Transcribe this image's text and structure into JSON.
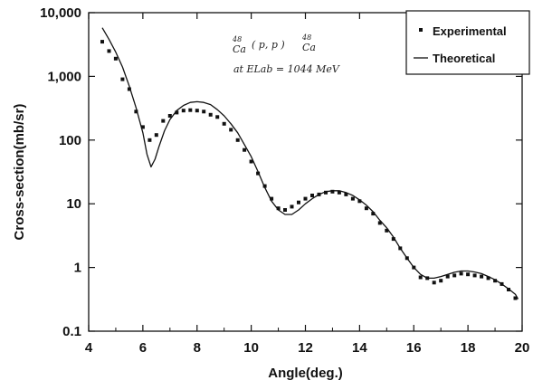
{
  "chart_data": {
    "type": "scatter",
    "title": "",
    "xlabel": "Angle(deg.)",
    "ylabel": "Cross-section(mb/sr)",
    "xlim": [
      4,
      20
    ],
    "ylim": [
      0.1,
      10000
    ],
    "yscale": "log",
    "x_ticks": [
      4,
      6,
      8,
      10,
      12,
      14,
      16,
      18,
      20
    ],
    "y_ticks": [
      {
        "value": 10000,
        "label": "10,000"
      },
      {
        "value": 1000,
        "label": "1,000"
      },
      {
        "value": 100,
        "label": "100"
      },
      {
        "value": 10,
        "label": "10"
      },
      {
        "value": 1,
        "label": "1"
      },
      {
        "value": 0.1,
        "label": "0.1"
      }
    ],
    "grid": false,
    "legend_position": "top-right",
    "annotation": {
      "reaction_mass_1": "48",
      "reaction_base_1": "Ca",
      "reaction_mid": "( p, p )",
      "reaction_mass_2": "48",
      "reaction_base_2": "Ca",
      "energy": "at ELab = 1044 MeV"
    },
    "series": [
      {
        "name": "Experimental",
        "type": "scatter",
        "marker": "square",
        "color": "#111111",
        "points": [
          [
            4.5,
            3500
          ],
          [
            4.75,
            2500
          ],
          [
            5.0,
            1900
          ],
          [
            5.25,
            900
          ],
          [
            5.5,
            630
          ],
          [
            5.75,
            280
          ],
          [
            6.0,
            160
          ],
          [
            6.25,
            100
          ],
          [
            6.5,
            120
          ],
          [
            6.75,
            200
          ],
          [
            7.0,
            240
          ],
          [
            7.25,
            270
          ],
          [
            7.5,
            290
          ],
          [
            7.75,
            295
          ],
          [
            8.0,
            290
          ],
          [
            8.25,
            280
          ],
          [
            8.5,
            250
          ],
          [
            8.75,
            230
          ],
          [
            9.0,
            180
          ],
          [
            9.25,
            145
          ],
          [
            9.5,
            100
          ],
          [
            9.75,
            70
          ],
          [
            10.0,
            46
          ],
          [
            10.25,
            30
          ],
          [
            10.5,
            19
          ],
          [
            10.75,
            12
          ],
          [
            11.0,
            8.5
          ],
          [
            11.25,
            8.0
          ],
          [
            11.5,
            9.0
          ],
          [
            11.75,
            10.5
          ],
          [
            12.0,
            12
          ],
          [
            12.25,
            13.5
          ],
          [
            12.5,
            14
          ],
          [
            12.75,
            15
          ],
          [
            13.0,
            15.5
          ],
          [
            13.25,
            15
          ],
          [
            13.5,
            14
          ],
          [
            13.75,
            12
          ],
          [
            14.0,
            11
          ],
          [
            14.25,
            8.5
          ],
          [
            14.5,
            7
          ],
          [
            14.75,
            5
          ],
          [
            15.0,
            3.8
          ],
          [
            15.25,
            2.8
          ],
          [
            15.5,
            2.0
          ],
          [
            15.75,
            1.4
          ],
          [
            16.0,
            1.0
          ],
          [
            16.25,
            0.7
          ],
          [
            16.5,
            0.68
          ],
          [
            16.75,
            0.58
          ],
          [
            17.0,
            0.62
          ],
          [
            17.25,
            0.72
          ],
          [
            17.5,
            0.75
          ],
          [
            17.75,
            0.8
          ],
          [
            18.0,
            0.78
          ],
          [
            18.25,
            0.75
          ],
          [
            18.5,
            0.72
          ],
          [
            18.75,
            0.68
          ],
          [
            19.0,
            0.62
          ],
          [
            19.25,
            0.55
          ],
          [
            19.5,
            0.45
          ],
          [
            19.75,
            0.33
          ]
        ]
      },
      {
        "name": "Theoretical",
        "type": "line",
        "color": "#111111",
        "points": [
          [
            4.5,
            5800
          ],
          [
            4.75,
            3800
          ],
          [
            5.0,
            2400
          ],
          [
            5.25,
            1400
          ],
          [
            5.5,
            700
          ],
          [
            5.75,
            320
          ],
          [
            6.0,
            130
          ],
          [
            6.15,
            60
          ],
          [
            6.3,
            38
          ],
          [
            6.45,
            50
          ],
          [
            6.6,
            80
          ],
          [
            6.8,
            140
          ],
          [
            7.0,
            210
          ],
          [
            7.25,
            290
          ],
          [
            7.5,
            350
          ],
          [
            7.75,
            390
          ],
          [
            8.0,
            400
          ],
          [
            8.25,
            390
          ],
          [
            8.5,
            360
          ],
          [
            8.75,
            300
          ],
          [
            9.0,
            240
          ],
          [
            9.25,
            180
          ],
          [
            9.5,
            130
          ],
          [
            9.75,
            85
          ],
          [
            10.0,
            55
          ],
          [
            10.25,
            32
          ],
          [
            10.5,
            18
          ],
          [
            10.75,
            11
          ],
          [
            11.0,
            8
          ],
          [
            11.25,
            6.8
          ],
          [
            11.5,
            6.8
          ],
          [
            11.75,
            8.0
          ],
          [
            12.0,
            10
          ],
          [
            12.25,
            12
          ],
          [
            12.5,
            14
          ],
          [
            12.75,
            15.5
          ],
          [
            13.0,
            16
          ],
          [
            13.25,
            16
          ],
          [
            13.5,
            15
          ],
          [
            13.75,
            13.5
          ],
          [
            14.0,
            11.5
          ],
          [
            14.25,
            9.5
          ],
          [
            14.5,
            7.5
          ],
          [
            14.75,
            5.5
          ],
          [
            15.0,
            4.2
          ],
          [
            15.25,
            3.0
          ],
          [
            15.5,
            2.0
          ],
          [
            15.75,
            1.4
          ],
          [
            16.0,
            1.0
          ],
          [
            16.25,
            0.78
          ],
          [
            16.5,
            0.68
          ],
          [
            16.75,
            0.68
          ],
          [
            17.0,
            0.72
          ],
          [
            17.25,
            0.78
          ],
          [
            17.5,
            0.84
          ],
          [
            17.75,
            0.88
          ],
          [
            18.0,
            0.88
          ],
          [
            18.25,
            0.85
          ],
          [
            18.5,
            0.8
          ],
          [
            18.75,
            0.72
          ],
          [
            19.0,
            0.64
          ],
          [
            19.25,
            0.55
          ],
          [
            19.5,
            0.46
          ],
          [
            19.75,
            0.38
          ],
          [
            19.85,
            0.32
          ]
        ]
      }
    ]
  }
}
